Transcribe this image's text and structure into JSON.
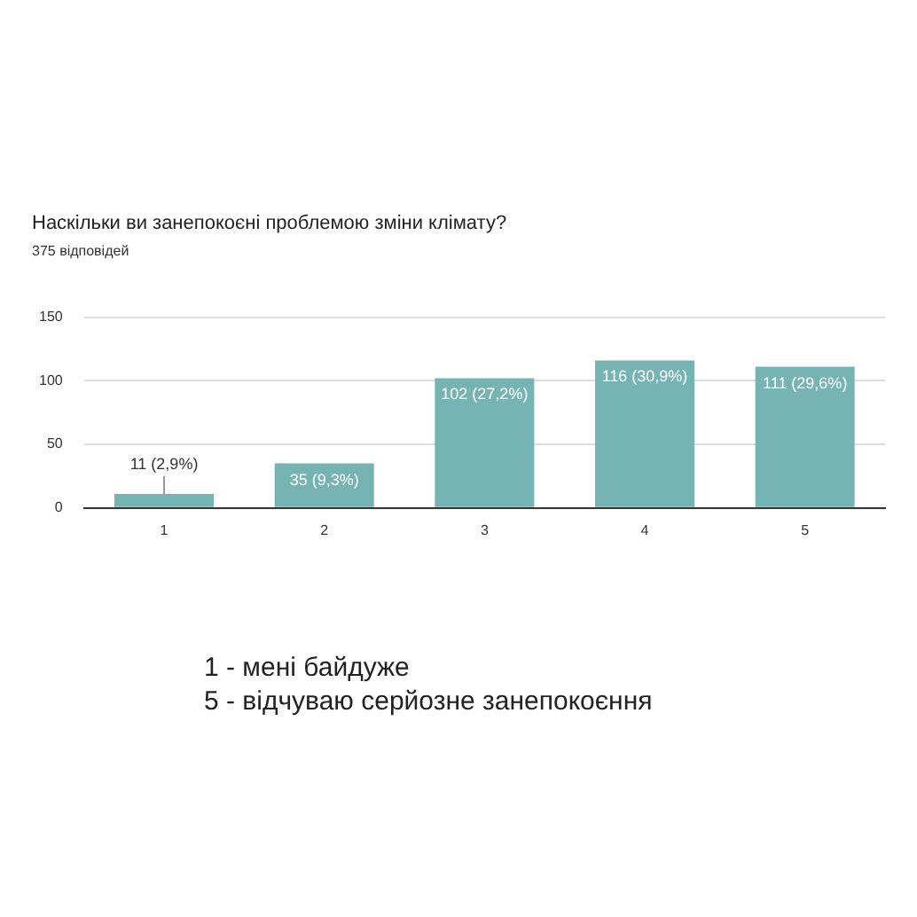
{
  "chart_data": {
    "type": "bar",
    "title": "Наскільки ви занепокоєні проблемою зміни клімату?",
    "subtitle": "375 відповідей",
    "categories": [
      "1",
      "2",
      "3",
      "4",
      "5"
    ],
    "values": [
      11,
      35,
      102,
      116,
      111
    ],
    "value_labels": [
      "11 (2,9%)",
      "35 (9,3%)",
      "102 (27,2%)",
      "116 (30,9%)",
      "111 (29,6%)"
    ],
    "color": "#76b4b4",
    "ylim": [
      0,
      150
    ],
    "yticks": [
      0,
      50,
      100,
      150
    ],
    "grid": "y",
    "annotations": [
      "1 - мені байдуже",
      "5 - відчуваю серйозне занепокоєння"
    ]
  }
}
